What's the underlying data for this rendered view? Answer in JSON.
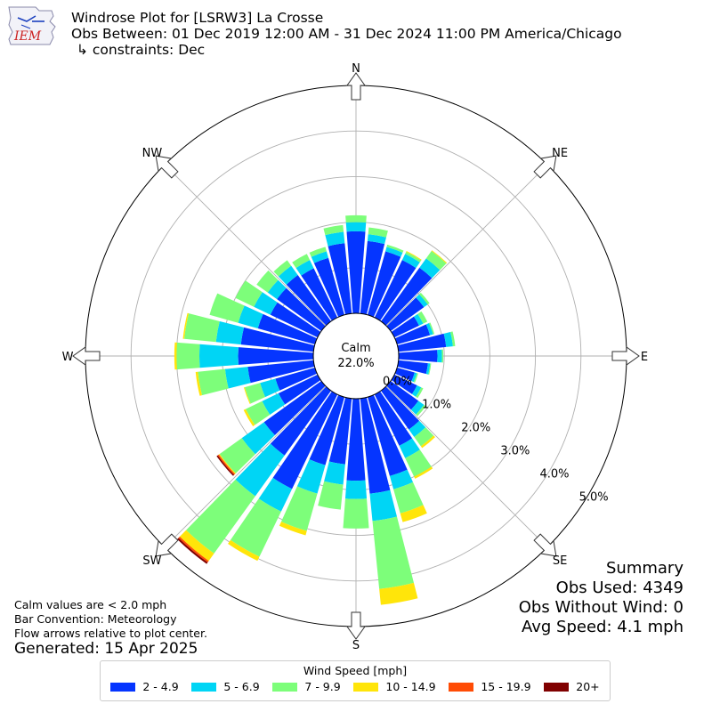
{
  "header": {
    "line1": "Windrose Plot for [LSRW3] La Crosse",
    "line2": "Obs Between: 01 Dec 2019 12:00 AM - 31 Dec 2024 11:00 PM America/Chicago",
    "line3": "↳ constraints: Dec",
    "logo_text": "IEM"
  },
  "notes": {
    "calm_def": "Calm values are < 2.0 mph",
    "bar_convention": "Bar Convention: Meteorology",
    "flow_arrows": "Flow arrows relative to plot center.",
    "generated": "Generated: 15 Apr 2025"
  },
  "summary": {
    "title": "Summary",
    "obs_used": "Obs Used: 4349",
    "obs_without_wind": "Obs Without Wind: 0",
    "avg_speed": "Avg Speed: 4.1 mph"
  },
  "legend": {
    "title": "Wind Speed [mph]",
    "items": [
      {
        "label": "2 - 4.9",
        "color": "#0535ff"
      },
      {
        "label": "5 - 6.9",
        "color": "#00d5f5"
      },
      {
        "label": "7 - 9.9",
        "color": "#7dfe7a"
      },
      {
        "label": "10 - 14.9",
        "color": "#ffe50a"
      },
      {
        "label": "15 - 19.9",
        "color": "#ff4c05"
      },
      {
        "label": "20+",
        "color": "#800000"
      }
    ]
  },
  "chart_data": {
    "type": "windrose",
    "calm_label": "Calm",
    "calm_value": "22.0%",
    "rlim": [
      0,
      5.0
    ],
    "radial_ticks": [
      "0.0%",
      "1.0%",
      "2.0%",
      "3.0%",
      "4.0%",
      "5.0%"
    ],
    "radial_tick_values": [
      0,
      1,
      2,
      3,
      4,
      5
    ],
    "compass_labels": [
      "N",
      "NE",
      "E",
      "SE",
      "S",
      "SW",
      "W",
      "NW"
    ],
    "grid": true,
    "directions_deg": [
      0,
      10,
      20,
      30,
      40,
      50,
      60,
      70,
      80,
      90,
      100,
      110,
      120,
      130,
      140,
      150,
      160,
      170,
      180,
      190,
      200,
      210,
      220,
      230,
      240,
      250,
      260,
      270,
      280,
      290,
      300,
      310,
      320,
      330,
      340,
      350
    ],
    "speed_bins": [
      "2 - 4.9",
      "5 - 6.9",
      "7 - 9.9",
      "10 - 14.9",
      "15 - 19.9",
      "20+"
    ],
    "bin_colors": [
      "#0535ff",
      "#00d5f5",
      "#7dfe7a",
      "#ffe50a",
      "#ff4c05",
      "#800000"
    ],
    "cumulative_percent": [
      [
        1.8,
        2.0,
        2.15,
        2.15,
        2.15,
        2.15
      ],
      [
        1.6,
        1.75,
        1.9,
        1.9,
        1.9,
        1.9
      ],
      [
        1.45,
        1.55,
        1.6,
        1.6,
        1.6,
        1.6
      ],
      [
        1.4,
        1.55,
        1.6,
        1.62,
        1.62,
        1.62
      ],
      [
        1.45,
        1.7,
        1.9,
        1.92,
        1.92,
        1.92
      ],
      [
        0.9,
        1.0,
        1.05,
        1.05,
        1.05,
        1.05
      ],
      [
        0.6,
        0.7,
        0.8,
        0.8,
        0.8,
        0.8
      ],
      [
        0.75,
        0.82,
        0.85,
        0.85,
        0.85,
        0.85
      ],
      [
        1.05,
        1.2,
        1.25,
        1.25,
        1.25,
        1.25
      ],
      [
        0.85,
        0.95,
        0.98,
        0.98,
        0.98,
        0.98
      ],
      [
        0.65,
        0.7,
        0.72,
        0.72,
        0.72,
        0.72
      ],
      [
        0.4,
        0.45,
        0.48,
        0.48,
        0.48,
        0.48
      ],
      [
        0.55,
        0.65,
        0.7,
        0.7,
        0.7,
        0.7
      ],
      [
        0.75,
        0.9,
        0.95,
        0.95,
        0.95,
        0.95
      ],
      [
        1.05,
        1.25,
        1.5,
        1.55,
        1.55,
        1.55
      ],
      [
        1.25,
        1.55,
        2.0,
        2.05,
        2.05,
        2.05
      ],
      [
        1.8,
        2.1,
        2.65,
        2.85,
        2.85,
        2.85
      ],
      [
        2.1,
        2.7,
        4.2,
        4.55,
        4.55,
        4.55
      ],
      [
        1.8,
        2.2,
        2.85,
        2.85,
        2.85,
        2.85
      ],
      [
        1.45,
        1.9,
        2.45,
        2.45,
        2.45,
        2.45
      ],
      [
        1.55,
        2.2,
        3.05,
        3.15,
        3.15,
        3.15
      ],
      [
        2.3,
        2.85,
        3.95,
        4.05,
        4.05,
        4.05
      ],
      [
        1.75,
        2.85,
        4.4,
        4.6,
        4.64,
        4.68
      ],
      [
        1.55,
        2.15,
        2.75,
        2.77,
        2.8,
        2.83
      ],
      [
        0.95,
        1.35,
        1.75,
        1.8,
        1.8,
        1.8
      ],
      [
        0.9,
        1.25,
        1.6,
        1.62,
        1.62,
        1.62
      ],
      [
        1.45,
        1.95,
        2.55,
        2.6,
        2.6,
        2.6
      ],
      [
        1.65,
        2.5,
        3.0,
        3.05,
        3.05,
        3.05
      ],
      [
        1.6,
        2.15,
        2.85,
        2.88,
        2.88,
        2.88
      ],
      [
        1.3,
        1.75,
        2.4,
        2.4,
        2.4,
        2.4
      ],
      [
        1.15,
        1.55,
        2.0,
        2.0,
        2.0,
        2.0
      ],
      [
        1.2,
        1.45,
        1.75,
        1.75,
        1.75,
        1.75
      ],
      [
        1.25,
        1.5,
        1.65,
        1.65,
        1.65,
        1.65
      ],
      [
        1.2,
        1.4,
        1.55,
        1.55,
        1.55,
        1.55
      ],
      [
        1.3,
        1.45,
        1.55,
        1.55,
        1.55,
        1.55
      ],
      [
        1.55,
        1.8,
        1.95,
        1.95,
        1.95,
        1.95
      ]
    ]
  }
}
